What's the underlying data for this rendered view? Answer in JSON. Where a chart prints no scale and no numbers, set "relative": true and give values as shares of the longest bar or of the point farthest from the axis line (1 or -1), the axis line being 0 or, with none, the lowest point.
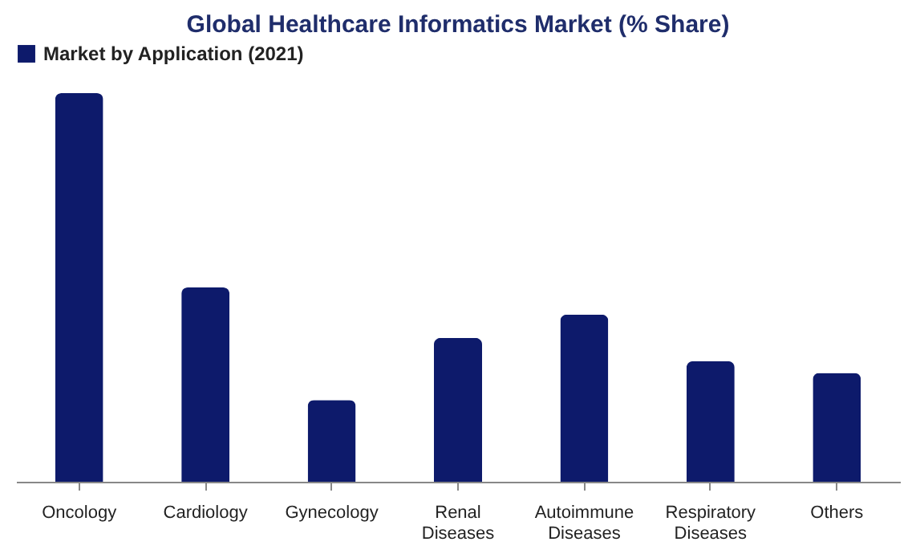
{
  "chart_data": {
    "type": "bar",
    "title": "Global Healthcare Informatics Market (% Share)",
    "categories": [
      "Oncology",
      "Cardiology",
      "Gynecology",
      "Renal Diseases",
      "Autoimmune Diseases",
      "Respiratory Diseases",
      "Others"
    ],
    "series": [
      {
        "name": "Market by Application (2021)",
        "color": "#0d1a6b",
        "values": [
          1,
          0.5,
          0.21,
          0.37,
          0.43,
          0.31,
          0.28
        ]
      }
    ],
    "relative": true,
    "legend": "top",
    "grid": false
  }
}
